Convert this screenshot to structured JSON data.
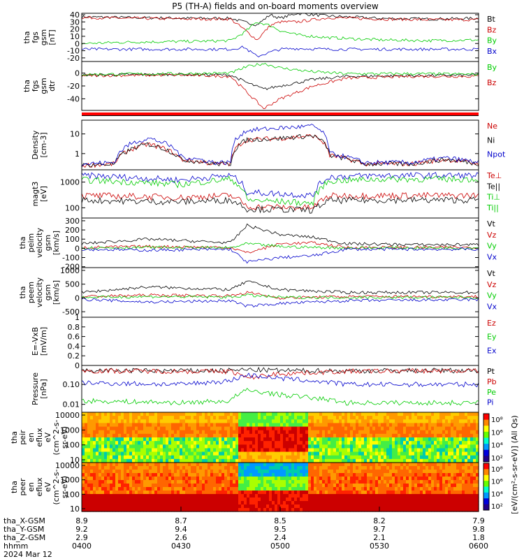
{
  "title": "P5 (TH-A) fields and on-board moments overview",
  "chart_data": [
    {
      "type": "line",
      "ylabel": [
        "tha",
        "fgs",
        "gsm",
        "[nT]"
      ],
      "yticks": [
        -20,
        -10,
        0,
        10,
        20,
        30,
        40
      ],
      "ylim": [
        -25,
        42
      ],
      "legend": [
        {
          "label": "Bt",
          "color": "#000000"
        },
        {
          "label": "Bz",
          "color": "#cc0000"
        },
        {
          "label": "By",
          "color": "#00cc00"
        },
        {
          "label": "Bx",
          "color": "#0000cc"
        }
      ],
      "series": [
        {
          "name": "Bt",
          "color": "#000000",
          "x": [
            "04:00",
            "04:15",
            "04:35",
            "04:45",
            "04:49",
            "04:53",
            "04:57",
            "05:00",
            "05:05",
            "05:15",
            "05:30",
            "05:45",
            "06:00"
          ],
          "values": [
            37,
            36,
            35,
            35,
            30,
            26,
            40,
            35,
            42,
            38,
            35,
            34,
            35
          ]
        },
        {
          "name": "Bz",
          "color": "#cc0000",
          "x": [
            "04:00",
            "04:15",
            "04:35",
            "04:45",
            "04:49",
            "04:53",
            "04:57",
            "05:00",
            "05:05",
            "05:15",
            "05:30",
            "05:45",
            "06:00"
          ],
          "values": [
            36,
            35,
            34,
            34,
            20,
            5,
            25,
            30,
            30,
            36,
            34,
            33,
            33
          ]
        },
        {
          "name": "By",
          "color": "#00cc00",
          "x": [
            "04:00",
            "04:15",
            "04:35",
            "04:45",
            "04:49",
            "04:53",
            "04:57",
            "05:00",
            "05:05",
            "05:15",
            "05:30",
            "05:45",
            "06:00"
          ],
          "values": [
            0,
            2,
            3,
            4,
            15,
            30,
            25,
            18,
            12,
            8,
            5,
            4,
            5
          ]
        },
        {
          "name": "Bx",
          "color": "#0000cc",
          "x": [
            "04:00",
            "04:15",
            "04:35",
            "04:45",
            "04:49",
            "04:53",
            "04:57",
            "05:00",
            "05:05",
            "05:15",
            "05:30",
            "05:45",
            "06:00"
          ],
          "values": [
            -8,
            -8,
            -8,
            -8,
            -5,
            -18,
            -12,
            -8,
            -7,
            -8,
            -8,
            -8,
            -8
          ]
        }
      ]
    },
    {
      "type": "line",
      "ylabel": [
        "tha",
        "fgs",
        "gsm",
        "dtr"
      ],
      "yticks": [
        -40,
        -20,
        0
      ],
      "ylim": [
        -58,
        18
      ],
      "legend": [
        {
          "label": "By",
          "color": "#00cc00"
        },
        {
          "label": "Bz",
          "color": "#cc0000"
        }
      ],
      "series": [
        {
          "name": "Bx",
          "color": "#000000",
          "x": [
            "04:00",
            "04:30",
            "04:45",
            "04:50",
            "04:55",
            "05:00",
            "05:10",
            "05:20",
            "05:40",
            "06:00"
          ],
          "values": [
            -3,
            -2,
            -3,
            -15,
            -25,
            -20,
            -10,
            -5,
            -4,
            -3
          ]
        },
        {
          "name": "Bz",
          "color": "#cc0000",
          "x": [
            "04:00",
            "04:30",
            "04:45",
            "04:50",
            "04:55",
            "05:00",
            "05:10",
            "05:20",
            "05:40",
            "06:00"
          ],
          "values": [
            -4,
            -3,
            -5,
            -30,
            -55,
            -40,
            -20,
            -8,
            -5,
            -5
          ]
        },
        {
          "name": "By",
          "color": "#00cc00",
          "x": [
            "04:00",
            "04:30",
            "04:45",
            "04:50",
            "04:55",
            "05:00",
            "05:10",
            "05:20",
            "05:40",
            "06:00"
          ],
          "values": [
            -2,
            -1,
            0,
            10,
            15,
            8,
            2,
            -1,
            -1,
            -2
          ]
        }
      ]
    },
    {
      "type": "line",
      "scale": "log",
      "ylabel": [
        "Density",
        "[cm-3]"
      ],
      "yticks": [
        1,
        10
      ],
      "ylim": [
        0.15,
        50
      ],
      "legend": [
        {
          "label": "Ne",
          "color": "#cc0000"
        },
        {
          "label": "Ni",
          "color": "#000000"
        },
        {
          "label": "Npot",
          "color": "#0000cc"
        }
      ],
      "series": [
        {
          "name": "Ne",
          "color": "#cc0000",
          "x": [
            "04:00",
            "04:10",
            "04:20",
            "04:30",
            "04:40",
            "04:45",
            "04:50",
            "05:00",
            "05:10",
            "05:15",
            "05:25",
            "05:40",
            "05:50",
            "06:00"
          ],
          "values": [
            0.25,
            0.3,
            3,
            0.5,
            0.3,
            0.3,
            5,
            6,
            8,
            0.8,
            0.3,
            0.3,
            0.5,
            0.3
          ]
        },
        {
          "name": "Ni",
          "color": "#000000",
          "x": [
            "04:00",
            "04:10",
            "04:20",
            "04:30",
            "04:40",
            "04:45",
            "04:50",
            "05:00",
            "05:10",
            "05:15",
            "05:25",
            "05:40",
            "05:50",
            "06:00"
          ],
          "values": [
            0.25,
            0.3,
            3,
            0.5,
            0.3,
            0.3,
            5,
            6,
            8,
            0.8,
            0.3,
            0.3,
            0.5,
            0.3
          ]
        },
        {
          "name": "Npot",
          "color": "#0000cc",
          "x": [
            "04:00",
            "04:10",
            "04:20",
            "04:30",
            "04:40",
            "04:45",
            "04:50",
            "05:00",
            "05:10",
            "05:15",
            "05:25",
            "05:40",
            "05:50",
            "06:00"
          ],
          "values": [
            0.3,
            0.35,
            6,
            0.7,
            0.35,
            0.35,
            15,
            20,
            25,
            1,
            0.35,
            0.35,
            0.6,
            0.35
          ]
        }
      ]
    },
    {
      "type": "line",
      "scale": "log",
      "ylabel": [
        "magt3",
        "[eV]"
      ],
      "yticks": [
        100,
        1000
      ],
      "ylim": [
        40,
        3000
      ],
      "legend": [
        {
          "label": "Te⊥",
          "color": "#cc0000"
        },
        {
          "label": "Te||",
          "color": "#000000"
        },
        {
          "label": "Ti⊥",
          "color": "#00cc00"
        },
        {
          "label": "Ti||",
          "color": "#00cc00"
        }
      ],
      "series": [
        {
          "name": "Ti",
          "color": "#0000cc",
          "x": [
            "04:00",
            "04:15",
            "04:30",
            "04:45",
            "04:50",
            "05:10",
            "05:15",
            "05:30",
            "05:45",
            "06:00"
          ],
          "values": [
            1800,
            1500,
            1200,
            1800,
            400,
            300,
            1600,
            1800,
            1800,
            1800
          ]
        },
        {
          "name": "Ti||",
          "color": "#00cc00",
          "x": [
            "04:00",
            "04:15",
            "04:30",
            "04:45",
            "04:50",
            "05:10",
            "05:15",
            "05:30",
            "05:45",
            "06:00"
          ],
          "values": [
            1200,
            1000,
            800,
            1300,
            200,
            150,
            1100,
            1300,
            1300,
            1300
          ]
        },
        {
          "name": "Te⊥",
          "color": "#cc0000",
          "x": [
            "04:00",
            "04:15",
            "04:30",
            "04:45",
            "04:50",
            "05:10",
            "05:15",
            "05:30",
            "05:45",
            "06:00"
          ],
          "values": [
            300,
            280,
            250,
            300,
            110,
            100,
            290,
            300,
            300,
            300
          ]
        },
        {
          "name": "Te||",
          "color": "#000000",
          "x": [
            "04:00",
            "04:15",
            "04:30",
            "04:45",
            "04:50",
            "05:10",
            "05:15",
            "05:30",
            "05:45",
            "06:00"
          ],
          "values": [
            200,
            180,
            170,
            200,
            90,
            80,
            190,
            200,
            200,
            200
          ]
        }
      ]
    },
    {
      "type": "line",
      "ylabel": [
        "tha",
        "peim",
        "velocity",
        "gsm",
        "[km/s]"
      ],
      "yticks": [
        -200,
        -100,
        0,
        100,
        200,
        300
      ],
      "ylim": [
        -210,
        330
      ],
      "legend": [
        {
          "label": "Vt",
          "color": "#000000"
        },
        {
          "label": "Vz",
          "color": "#cc0000"
        },
        {
          "label": "Vy",
          "color": "#00cc00"
        },
        {
          "label": "Vx",
          "color": "#0000cc"
        }
      ],
      "series": [
        {
          "name": "Vt",
          "color": "#000000",
          "x": [
            "04:00",
            "04:20",
            "04:45",
            "04:50",
            "05:00",
            "05:10",
            "05:20",
            "05:40",
            "06:00"
          ],
          "values": [
            50,
            100,
            60,
            250,
            150,
            120,
            50,
            40,
            40
          ]
        },
        {
          "name": "Vz",
          "color": "#cc0000",
          "x": [
            "04:00",
            "04:20",
            "04:45",
            "04:50",
            "05:00",
            "05:10",
            "05:20",
            "05:40",
            "06:00"
          ],
          "values": [
            10,
            20,
            10,
            -50,
            50,
            60,
            10,
            10,
            10
          ]
        },
        {
          "name": "Vy",
          "color": "#00cc00",
          "x": [
            "04:00",
            "04:20",
            "04:45",
            "04:50",
            "05:00",
            "05:10",
            "05:20",
            "05:40",
            "06:00"
          ],
          "values": [
            5,
            10,
            5,
            50,
            20,
            10,
            5,
            5,
            5
          ]
        },
        {
          "name": "Vx",
          "color": "#0000cc",
          "x": [
            "04:00",
            "04:20",
            "04:45",
            "04:50",
            "05:00",
            "05:10",
            "05:20",
            "05:40",
            "06:00"
          ],
          "values": [
            -10,
            -20,
            -10,
            -150,
            -100,
            -80,
            -10,
            -10,
            -10
          ]
        }
      ]
    },
    {
      "type": "line",
      "ylabel": [
        "tha",
        "peem",
        "velocity",
        "gsm",
        "[km/s]"
      ],
      "yticks": [
        -500,
        0,
        500,
        1000
      ],
      "ylim": [
        -700,
        1100
      ],
      "legend": [
        {
          "label": "Vt",
          "color": "#000000"
        },
        {
          "label": "Vz",
          "color": "#cc0000"
        },
        {
          "label": "Vy",
          "color": "#00cc00"
        },
        {
          "label": "Vx",
          "color": "#0000cc"
        }
      ],
      "series": [
        {
          "name": "Vt",
          "color": "#000000",
          "x": [
            "04:00",
            "04:20",
            "04:45",
            "04:50",
            "05:00",
            "05:20",
            "05:40",
            "06:00"
          ],
          "values": [
            200,
            400,
            300,
            600,
            300,
            200,
            200,
            200
          ]
        },
        {
          "name": "Vz",
          "color": "#cc0000",
          "x": [
            "04:00",
            "04:20",
            "04:45",
            "04:50",
            "05:00",
            "05:20",
            "05:40",
            "06:00"
          ],
          "values": [
            50,
            100,
            80,
            200,
            0,
            50,
            50,
            50
          ]
        },
        {
          "name": "Vy",
          "color": "#00cc00",
          "x": [
            "04:00",
            "04:20",
            "04:45",
            "04:50",
            "05:00",
            "05:20",
            "05:40",
            "06:00"
          ],
          "values": [
            20,
            50,
            30,
            100,
            20,
            20,
            20,
            20
          ]
        },
        {
          "name": "Vx",
          "color": "#0000cc",
          "x": [
            "04:00",
            "04:20",
            "04:45",
            "04:50",
            "05:00",
            "05:20",
            "05:40",
            "06:00"
          ],
          "values": [
            -50,
            -150,
            -100,
            -300,
            -200,
            -100,
            -80,
            -60
          ]
        }
      ]
    },
    {
      "type": "line",
      "ylabel": [
        "E=-VxB",
        "[mV/m]"
      ],
      "yticks": [
        0.0,
        0.2,
        0.4,
        0.6,
        0.8,
        1.0
      ],
      "ylim": [
        0,
        1
      ],
      "legend": [
        {
          "label": "Ez",
          "color": "#cc0000"
        },
        {
          "label": "Ey",
          "color": "#00cc00"
        },
        {
          "label": "Ex",
          "color": "#0000cc"
        }
      ],
      "series": []
    },
    {
      "type": "line",
      "scale": "log",
      "ylabel": [
        "Pressure",
        "[nPa]"
      ],
      "yticks": [
        0.01,
        0.1
      ],
      "yticklabels": [
        "0.01",
        "0.10"
      ],
      "ylim": [
        0.004,
        0.9
      ],
      "legend": [
        {
          "label": "Pt",
          "color": "#000000"
        },
        {
          "label": "Pb",
          "color": "#cc0000"
        },
        {
          "label": "Pe",
          "color": "#00cc00"
        },
        {
          "label": "Pi",
          "color": "#0000cc"
        }
      ],
      "series": [
        {
          "name": "Pt",
          "color": "#000000",
          "x": [
            "04:00",
            "04:30",
            "04:45",
            "04:50",
            "05:00",
            "05:20",
            "05:40",
            "06:00"
          ],
          "values": [
            0.5,
            0.48,
            0.5,
            0.55,
            0.5,
            0.48,
            0.5,
            0.5
          ]
        },
        {
          "name": "Pb",
          "color": "#cc0000",
          "x": [
            "04:00",
            "04:30",
            "04:45",
            "04:50",
            "05:00",
            "05:20",
            "05:40",
            "06:00"
          ],
          "values": [
            0.48,
            0.46,
            0.45,
            0.2,
            0.35,
            0.45,
            0.48,
            0.48
          ]
        },
        {
          "name": "Pi",
          "color": "#0000cc",
          "x": [
            "04:00",
            "04:30",
            "04:45",
            "04:50",
            "05:00",
            "05:20",
            "05:40",
            "06:00"
          ],
          "values": [
            0.12,
            0.1,
            0.15,
            0.3,
            0.2,
            0.1,
            0.1,
            0.1
          ]
        },
        {
          "name": "Pe",
          "color": "#00cc00",
          "x": [
            "04:00",
            "04:30",
            "04:45",
            "04:50",
            "05:00",
            "05:20",
            "05:40",
            "06:00"
          ],
          "values": [
            0.015,
            0.012,
            0.015,
            0.05,
            0.03,
            0.012,
            0.012,
            0.012
          ]
        }
      ]
    },
    {
      "type": "heatmap",
      "ylabel": [
        "tha",
        "peir",
        "en",
        "eflux",
        "eV",
        "(cm^2-s-",
        "sr-eV)"
      ],
      "yticks": [
        "10",
        "100",
        "1000",
        "10000"
      ],
      "scale": "log"
    },
    {
      "type": "heatmap",
      "ylabel": [
        "tha",
        "peer",
        "en",
        "eflux",
        "eV",
        "(cm^2-s-",
        "sr-eV)"
      ],
      "yticks": [
        "10",
        "100",
        "1000",
        "10000"
      ],
      "scale": "log"
    }
  ],
  "colorbar": {
    "ticks": [
      "10⁸",
      "10⁶",
      "10⁴",
      "10²",
      "10⁰"
    ],
    "ticks2": [
      "10⁸",
      "10⁶",
      "10⁴",
      "10²"
    ],
    "label": "[eV/(cm²-s-sr-eV)] (All Qs)"
  },
  "xaxis": {
    "rows": [
      {
        "label": "tha_X-GSM",
        "values": [
          "8.9",
          "8.7",
          "8.5",
          "8.2",
          "7.9"
        ]
      },
      {
        "label": "tha_Y-GSM",
        "values": [
          "9.2",
          "9.4",
          "9.5",
          "9.7",
          "9.8"
        ]
      },
      {
        "label": "tha_Z-GSM",
        "values": [
          "2.9",
          "2.6",
          "2.4",
          "2.1",
          "1.8"
        ]
      },
      {
        "label": "hhmm",
        "values": [
          "0400",
          "0430",
          "0500",
          "0530",
          "0600"
        ]
      }
    ],
    "date": "2024 Mar 12"
  }
}
